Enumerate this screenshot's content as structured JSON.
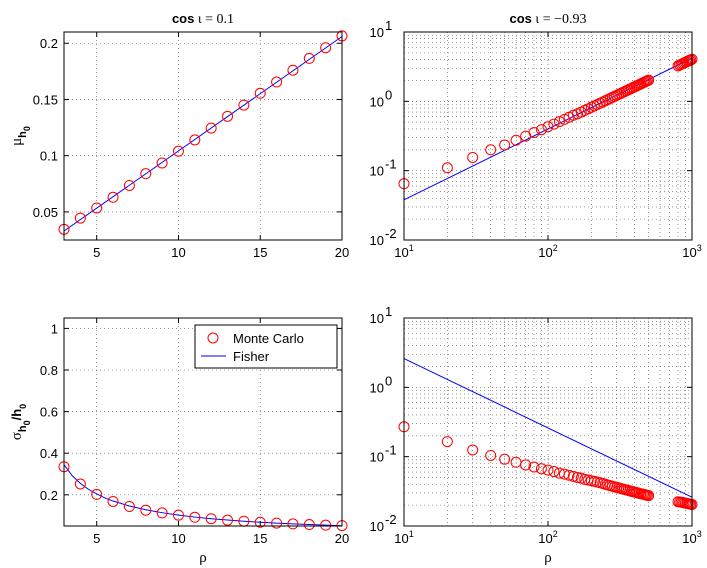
{
  "chart_data": [
    {
      "type": "scatter+line",
      "scale": "linear",
      "title_prefix": "cos",
      "title_rest": " ι = 0.1",
      "xlabel": "",
      "ylabel": "μ",
      "ylabel_sub": "h",
      "ylabel_subsub": "0",
      "xlim": [
        3,
        20
      ],
      "ylim": [
        0.025,
        0.21
      ],
      "xticks": [
        5,
        10,
        15,
        20
      ],
      "yticks": [
        0.05,
        0.1,
        0.15,
        0.2
      ],
      "xtick_labels": [
        "5",
        "10",
        "15",
        "20"
      ],
      "ytick_labels": [
        "0.05",
        "0.1",
        "0.15",
        "0.2"
      ],
      "grid": true,
      "series": [
        {
          "name": "Monte Carlo",
          "kind": "circles",
          "color": "#ff0000",
          "x": [
            3,
            4,
            5,
            6,
            7,
            8,
            9,
            10,
            11,
            12,
            13,
            14,
            15,
            16,
            17,
            18,
            19,
            20
          ],
          "y": [
            0.0345,
            0.0445,
            0.0535,
            0.063,
            0.0735,
            0.084,
            0.0935,
            0.104,
            0.114,
            0.1245,
            0.135,
            0.145,
            0.1555,
            0.1655,
            0.176,
            0.1865,
            0.196,
            0.2065
          ]
        },
        {
          "name": "Fisher",
          "kind": "line",
          "color": "#0000ff",
          "x": [
            3,
            20
          ],
          "y": [
            0.033,
            0.206
          ]
        }
      ]
    },
    {
      "type": "scatter+line",
      "scale": "loglog",
      "title_prefix": "cos",
      "title_rest": " ι = −0.93",
      "xlabel": "",
      "ylabel": "",
      "xlim": [
        10,
        1000
      ],
      "ylim": [
        0.01,
        10
      ],
      "xticks": [
        10,
        100,
        1000
      ],
      "yticks": [
        0.01,
        0.1,
        1,
        10
      ],
      "xtick_labels": [
        [
          "10",
          "1"
        ],
        [
          "10",
          "2"
        ],
        [
          "10",
          "3"
        ]
      ],
      "ytick_labels": [
        [
          "10",
          "-2"
        ],
        [
          "10",
          "-1"
        ],
        [
          "10",
          "0"
        ],
        [
          "10",
          "1"
        ]
      ],
      "grid": true,
      "series": [
        {
          "name": "Monte Carlo",
          "kind": "circles",
          "color": "#ff0000",
          "x": [
            10,
            20,
            30,
            40,
            50,
            60,
            70,
            80,
            90,
            100,
            110,
            120,
            130,
            140,
            150,
            160,
            170,
            180,
            190,
            200,
            210,
            220,
            230,
            240,
            250,
            260,
            270,
            280,
            290,
            300,
            310,
            320,
            330,
            340,
            350,
            360,
            370,
            380,
            390,
            400,
            410,
            420,
            430,
            440,
            450,
            460,
            470,
            480,
            490,
            500,
            800,
            820,
            840,
            860,
            880,
            900,
            920,
            940,
            960,
            980,
            1000
          ],
          "y": [
            0.065,
            0.11,
            0.155,
            0.2,
            0.235,
            0.275,
            0.315,
            0.355,
            0.39,
            0.43,
            0.47,
            0.51,
            0.55,
            0.59,
            0.63,
            0.66,
            0.7,
            0.74,
            0.78,
            0.82,
            0.86,
            0.9,
            0.94,
            0.98,
            1.02,
            1.06,
            1.1,
            1.14,
            1.18,
            1.22,
            1.26,
            1.3,
            1.34,
            1.38,
            1.42,
            1.46,
            1.5,
            1.54,
            1.58,
            1.62,
            1.66,
            1.7,
            1.74,
            1.78,
            1.82,
            1.86,
            1.9,
            1.94,
            1.98,
            2.02,
            3.25,
            3.33,
            3.41,
            3.49,
            3.57,
            3.65,
            3.73,
            3.81,
            3.89,
            3.97,
            4.05
          ]
        },
        {
          "name": "Fisher",
          "kind": "line",
          "color": "#0000ff",
          "x": [
            10,
            1000
          ],
          "y": [
            0.038,
            4.2
          ]
        }
      ]
    },
    {
      "type": "scatter+line",
      "scale": "linear",
      "title_prefix": "",
      "title_rest": "",
      "xlabel": "ρ",
      "ylabel": "σ",
      "ylabel_sub": "h",
      "ylabel_subsub": "0",
      "ylabel_tail": "/h",
      "ylabel_tail_sub": "0",
      "xlim": [
        3,
        20
      ],
      "ylim": [
        0.05,
        1.05
      ],
      "xticks": [
        5,
        10,
        15,
        20
      ],
      "yticks": [
        0.2,
        0.4,
        0.6,
        0.8,
        1.0
      ],
      "xtick_labels": [
        "5",
        "10",
        "15",
        "20"
      ],
      "ytick_labels": [
        "0.2",
        "0.4",
        "0.6",
        "0.8",
        "1"
      ],
      "grid": true,
      "legend": {
        "position": "top-right",
        "entries": [
          "Monte Carlo",
          "Fisher"
        ]
      },
      "series": [
        {
          "name": "Monte Carlo",
          "kind": "circles",
          "color": "#ff0000",
          "x": [
            3,
            4,
            5,
            6,
            7,
            8,
            9,
            10,
            11,
            12,
            13,
            14,
            15,
            16,
            17,
            18,
            19,
            20
          ],
          "y": [
            0.335,
            0.252,
            0.202,
            0.168,
            0.144,
            0.126,
            0.113,
            0.102,
            0.092,
            0.085,
            0.078,
            0.073,
            0.068,
            0.064,
            0.06,
            0.057,
            0.054,
            0.052
          ]
        },
        {
          "name": "Fisher",
          "kind": "line",
          "color": "#0000ff",
          "x": [
            3,
            3.5,
            4,
            4.5,
            5,
            5.5,
            6,
            7,
            8,
            9,
            10,
            11,
            12,
            13,
            14,
            15,
            16,
            17,
            18,
            19,
            20
          ],
          "y": [
            0.345,
            0.292,
            0.255,
            0.226,
            0.204,
            0.185,
            0.17,
            0.146,
            0.128,
            0.114,
            0.102,
            0.093,
            0.085,
            0.079,
            0.073,
            0.068,
            0.064,
            0.06,
            0.057,
            0.054,
            0.051
          ]
        }
      ]
    },
    {
      "type": "scatter+line",
      "scale": "loglog",
      "title_prefix": "",
      "title_rest": "",
      "xlabel": "ρ",
      "ylabel": "",
      "xlim": [
        10,
        1000
      ],
      "ylim": [
        0.01,
        10
      ],
      "xticks": [
        10,
        100,
        1000
      ],
      "yticks": [
        0.01,
        0.1,
        1,
        10
      ],
      "xtick_labels": [
        [
          "10",
          "1"
        ],
        [
          "10",
          "2"
        ],
        [
          "10",
          "3"
        ]
      ],
      "ytick_labels": [
        [
          "10",
          "-2"
        ],
        [
          "10",
          "-1"
        ],
        [
          "10",
          "0"
        ],
        [
          "10",
          "1"
        ]
      ],
      "grid": true,
      "series": [
        {
          "name": "Monte Carlo",
          "kind": "circles",
          "color": "#ff0000",
          "x": [
            10,
            20,
            30,
            40,
            50,
            60,
            70,
            80,
            90,
            100,
            110,
            120,
            130,
            140,
            150,
            160,
            170,
            180,
            190,
            200,
            210,
            220,
            230,
            240,
            250,
            260,
            270,
            280,
            290,
            300,
            310,
            320,
            330,
            340,
            350,
            360,
            370,
            380,
            390,
            400,
            410,
            420,
            430,
            440,
            450,
            460,
            470,
            480,
            490,
            500,
            800,
            820,
            840,
            860,
            880,
            900,
            920,
            940,
            960,
            980,
            1000
          ],
          "y": [
            0.27,
            0.165,
            0.125,
            0.104,
            0.092,
            0.083,
            0.076,
            0.071,
            0.067,
            0.064,
            0.061,
            0.058,
            0.056,
            0.054,
            0.052,
            0.05,
            0.049,
            0.047,
            0.046,
            0.045,
            0.044,
            0.043,
            0.042,
            0.041,
            0.04,
            0.039,
            0.0382,
            0.0374,
            0.0367,
            0.036,
            0.0354,
            0.0348,
            0.0342,
            0.0336,
            0.0331,
            0.0326,
            0.0321,
            0.0316,
            0.0312,
            0.0308,
            0.0304,
            0.03,
            0.0296,
            0.0292,
            0.0289,
            0.0286,
            0.0283,
            0.028,
            0.0277,
            0.0274,
            0.0224,
            0.0222,
            0.022,
            0.0218,
            0.0216,
            0.0214,
            0.0212,
            0.021,
            0.0208,
            0.0206,
            0.0204
          ]
        },
        {
          "name": "Fisher",
          "kind": "line",
          "color": "#0000ff",
          "x": [
            10,
            1000
          ],
          "y": [
            2.6,
            0.026
          ]
        }
      ]
    }
  ]
}
